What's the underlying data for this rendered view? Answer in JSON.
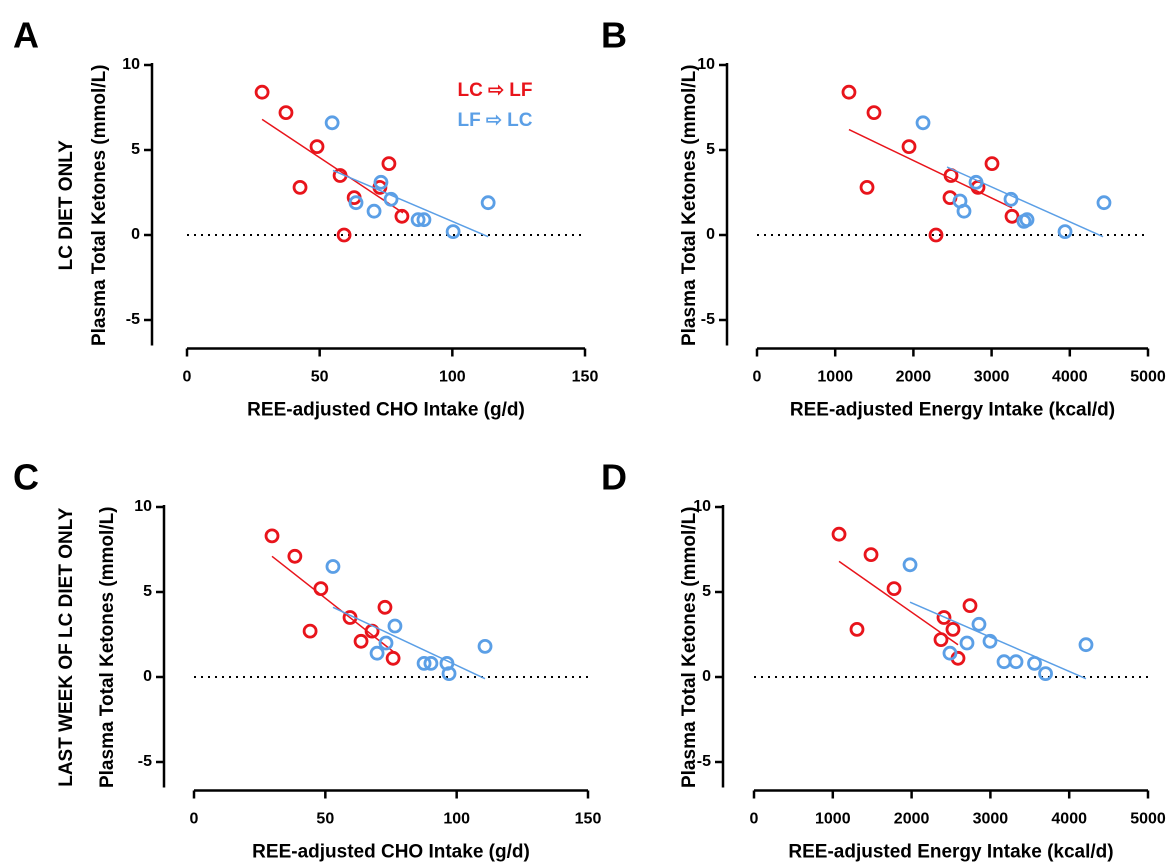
{
  "chart_data": [
    {
      "type": "scatter",
      "panel_label": "A",
      "row_label": "LC DIET ONLY",
      "x_label": "REE-adjusted CHO Intake (g/d)",
      "y_label": "Plasma Total Ketones (mmol/L)",
      "xlim": [
        0,
        150
      ],
      "xticks": [
        0,
        50,
        100,
        150
      ],
      "ylim": [
        -6.5,
        10
      ],
      "yticks": [
        -5,
        0,
        5,
        10
      ],
      "reference_line": 0,
      "series": [
        {
          "name": "LC ⇨ LF",
          "color": "#e8141b",
          "x": [
            28.3,
            37.3,
            42.6,
            49,
            57.7,
            63,
            72.7,
            76.1,
            81,
            59.2
          ],
          "values": [
            8.4,
            7.2,
            2.8,
            5.2,
            3.5,
            2.2,
            2.8,
            4.2,
            1.1,
            0.0
          ],
          "fit": {
            "x": [
              28.3,
              81.4
            ],
            "values": [
              6.8,
              1.3
            ]
          }
        },
        {
          "name": "LF ⇨ LC",
          "color": "#5b9fe6",
          "x": [
            54.7,
            73.1,
            63.7,
            70.5,
            76.9,
            87.1,
            89.3,
            100.3,
            113.5
          ],
          "values": [
            6.6,
            3.1,
            1.9,
            1.4,
            2.1,
            0.9,
            0.9,
            0.2,
            1.9
          ],
          "fit": {
            "x": [
              55,
              113.5
            ],
            "values": [
              3.8,
              -0.1
            ]
          }
        }
      ]
    },
    {
      "type": "scatter",
      "panel_label": "B",
      "x_label": "REE-adjusted Energy Intake (kcal/d)",
      "y_label": "Plasma Total Ketones (mmol/L)",
      "xlim": [
        0,
        5000
      ],
      "xticks": [
        0,
        1000,
        2000,
        3000,
        4000,
        5000
      ],
      "ylim": [
        -6.5,
        10
      ],
      "yticks": [
        -5,
        0,
        5,
        10
      ],
      "reference_line": 0,
      "series": [
        {
          "color": "#e8141b",
          "x": [
            1176,
            1496,
            1407,
            1944,
            2481,
            2468,
            2826,
            3005,
            3261,
            2289
          ],
          "values": [
            8.4,
            7.2,
            2.8,
            5.2,
            3.5,
            2.2,
            2.8,
            4.2,
            1.1,
            0.0
          ],
          "fit": {
            "x": [
              1176,
              3261
            ],
            "values": [
              6.2,
              1.6
            ]
          }
        },
        {
          "color": "#5b9fe6",
          "x": [
            2123,
            2801,
            2596,
            2647,
            3248,
            3414,
            3453,
            3939,
            4437
          ],
          "values": [
            6.6,
            3.1,
            2.0,
            1.4,
            2.1,
            0.8,
            0.9,
            0.2,
            1.9
          ],
          "fit": {
            "x": [
              2430,
              4425
            ],
            "values": [
              4.0,
              -0.1
            ]
          }
        }
      ]
    },
    {
      "type": "scatter",
      "panel_label": "C",
      "row_label": "LAST WEEK OF LC DIET ONLY",
      "x_label": "REE-adjusted CHO Intake (g/d)",
      "y_label": "Plasma Total Ketones (mmol/L)",
      "xlim": [
        0,
        150
      ],
      "xticks": [
        0,
        50,
        100,
        150
      ],
      "ylim": [
        -6.5,
        10
      ],
      "yticks": [
        -5,
        0,
        5,
        10
      ],
      "reference_line": 0,
      "series": [
        {
          "color": "#e8141b",
          "x": [
            29.7,
            38.4,
            44.2,
            48.3,
            59.4,
            63.6,
            67.8,
            72.7,
            75.8
          ],
          "values": [
            8.3,
            7.1,
            2.7,
            5.2,
            3.5,
            2.1,
            2.7,
            4.1,
            1.1
          ],
          "fit": {
            "x": [
              29.7,
              75.8
            ],
            "values": [
              7.1,
              1.5
            ]
          }
        },
        {
          "color": "#5b9fe6",
          "x": [
            52.9,
            76.5,
            73.1,
            69.7,
            87.6,
            90.2,
            96.3,
            97.1,
            110.8
          ],
          "values": [
            6.5,
            3.0,
            2.0,
            1.4,
            0.8,
            0.8,
            0.8,
            0.2,
            1.8
          ],
          "fit": {
            "x": [
              52.9,
              110.8
            ],
            "values": [
              4.1,
              -0.1
            ]
          }
        }
      ]
    },
    {
      "type": "scatter",
      "panel_label": "D",
      "x_label": "REE-adjusted Energy Intake (kcal/d)",
      "y_label": "Plasma Total Ketones (mmol/L)",
      "xlim": [
        0,
        5000
      ],
      "xticks": [
        0,
        1000,
        2000,
        3000,
        4000,
        5000
      ],
      "ylim": [
        -6.5,
        10
      ],
      "yticks": [
        -5,
        0,
        5,
        10
      ],
      "reference_line": 0,
      "series": [
        {
          "color": "#e8141b",
          "x": [
            1079,
            1485,
            1307,
            1777,
            2411,
            2373,
            2525,
            2741,
            2589
          ],
          "values": [
            8.4,
            7.2,
            2.8,
            5.2,
            3.5,
            2.2,
            2.8,
            4.2,
            1.1
          ],
          "fit": {
            "x": [
              1079,
              2589
            ],
            "values": [
              6.8,
              1.9
            ]
          }
        },
        {
          "color": "#5b9fe6",
          "x": [
            1980,
            2855,
            2703,
            2487,
            2995,
            3173,
            3325,
            3560,
            3700,
            4213
          ],
          "values": [
            6.6,
            3.1,
            2.0,
            1.4,
            2.1,
            0.9,
            0.9,
            0.8,
            0.2,
            1.9
          ],
          "fit": {
            "x": [
              1980,
              4213
            ],
            "values": [
              4.4,
              -0.1
            ]
          }
        }
      ]
    }
  ]
}
